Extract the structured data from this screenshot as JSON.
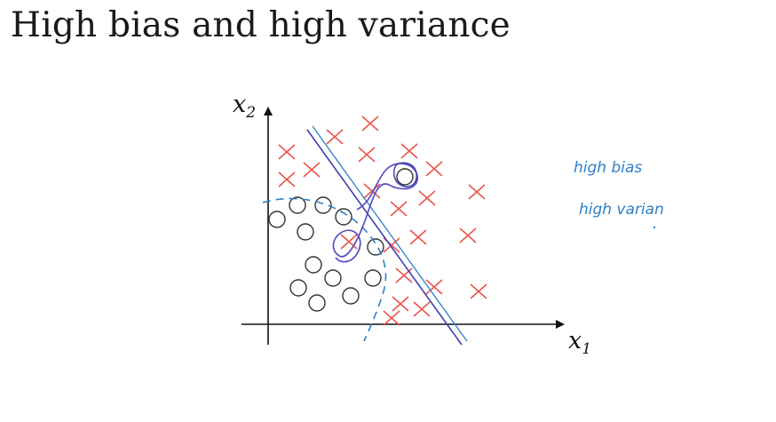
{
  "slide": {
    "title": "High bias and high variance"
  },
  "axes": {
    "x_label": "x",
    "x_subscript": "1",
    "y_label": "x",
    "y_subscript": "2"
  },
  "annotations": {
    "line1": "high  bias",
    "line2": "high  varian"
  },
  "colors": {
    "cross": "#e8564d",
    "circle": "#333333",
    "boundary_solid": "#3f3fb0",
    "boundary_dashed": "#2f80c8",
    "annotation": "#2f80c8"
  }
}
